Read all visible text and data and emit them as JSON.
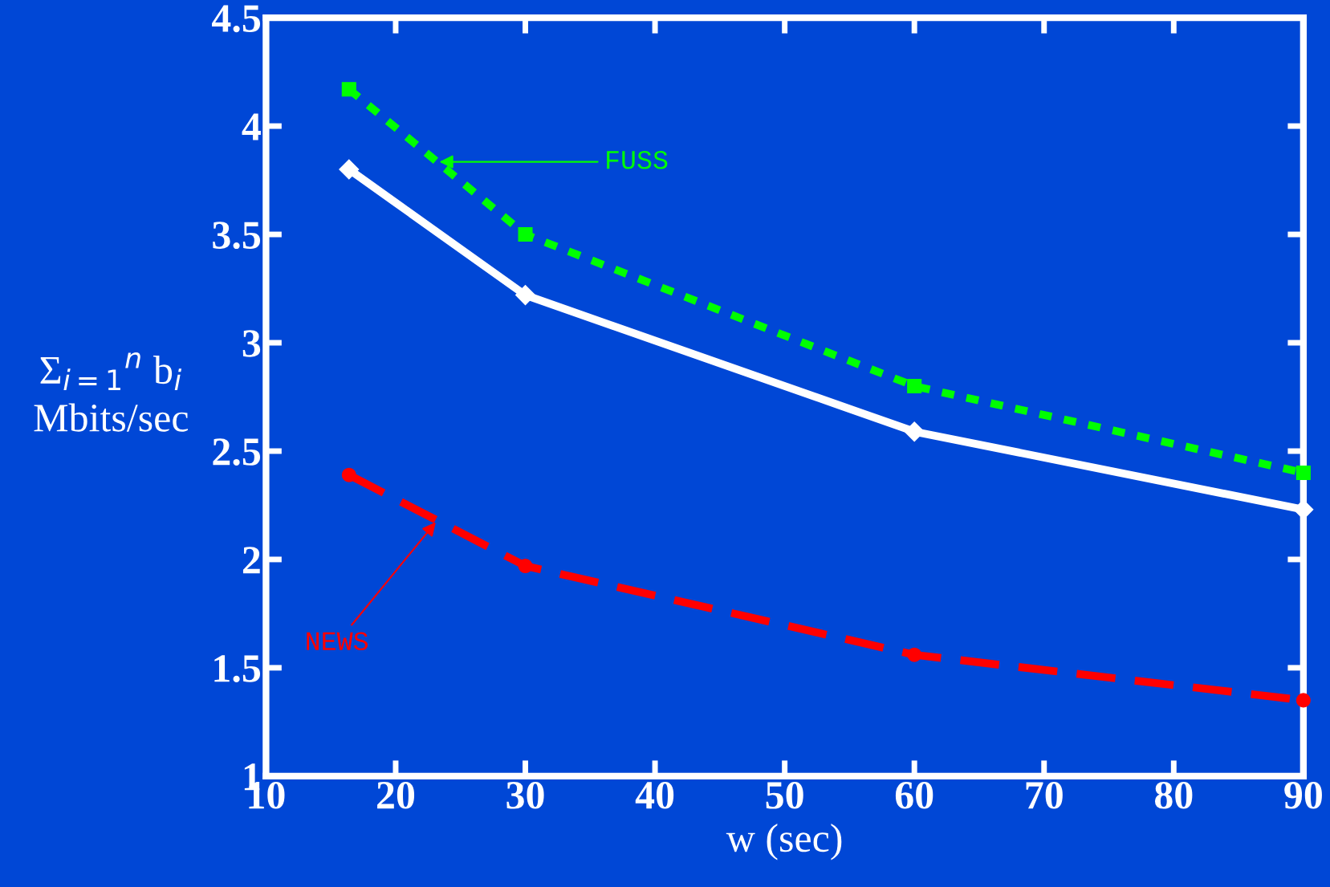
{
  "chart_data": {
    "type": "line",
    "x": [
      16.4,
      30,
      60,
      90
    ],
    "xlabel": "w (sec)",
    "ylabel": "Σ$_{i=1}$$^{n}$ b$_{i}$\nMbits/sec",
    "xlim": [
      10,
      90
    ],
    "xticks": [
      10,
      20,
      30,
      40,
      50,
      60,
      70,
      80,
      90
    ],
    "ylim": [
      1,
      4.5
    ],
    "yticks": [
      1,
      1.5,
      2,
      2.5,
      3,
      3.5,
      4,
      4.5
    ],
    "grid": false,
    "series": [
      {
        "name": "FUSS",
        "color": "#00ff00",
        "values": [
          4.17,
          3.5,
          2.8,
          2.4
        ],
        "line_style": "dotted",
        "marker": "square"
      },
      {
        "color": "#ffffff",
        "values": [
          3.8,
          3.22,
          2.59,
          2.23
        ],
        "line_style": "solid",
        "marker": "diamond"
      },
      {
        "name": "NEWS",
        "color": "#ff0000",
        "values": [
          2.39,
          1.97,
          1.56,
          1.35
        ],
        "line_style": "dashed",
        "marker": "circle"
      }
    ]
  }
}
